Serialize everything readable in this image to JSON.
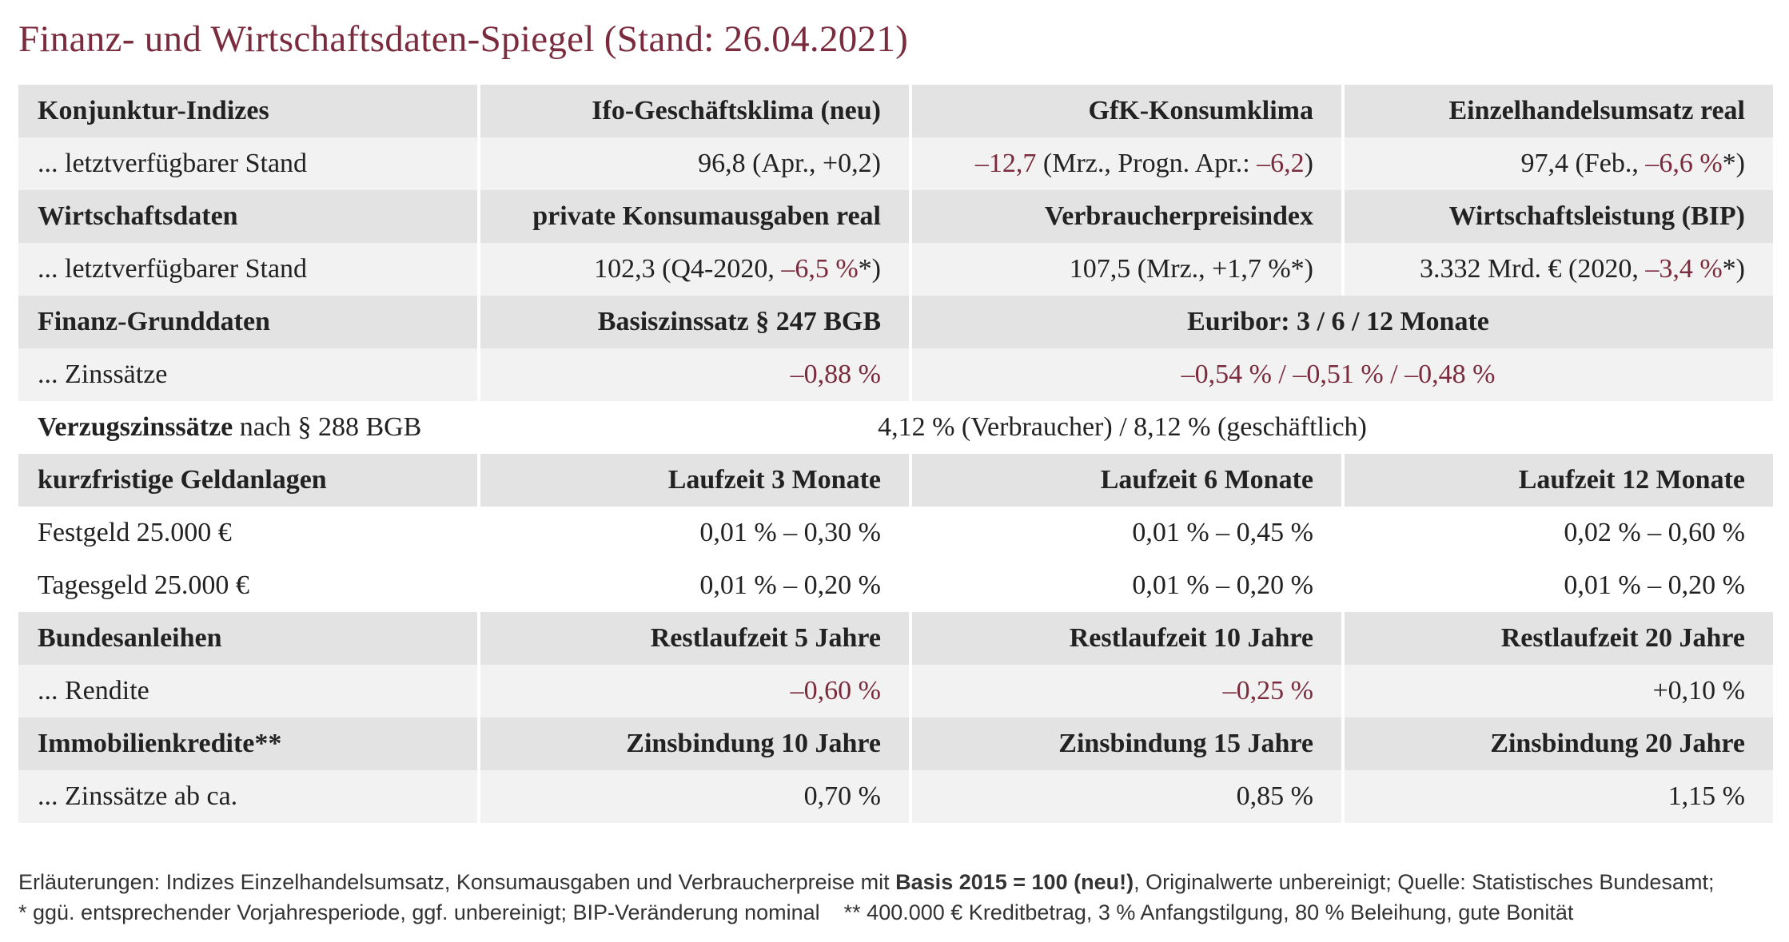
{
  "title": "Finanz- und Wirtschaftsdaten-Spiegel (Stand: 26.04.2021)",
  "table": {
    "rows": [
      [
        "Konjunktur-Indizes",
        "Ifo-Geschäftsklima (neu)",
        "GfK-Konsumklima",
        "Einzelhandelsumsatz real"
      ],
      [
        "... letztverfügbarer Stand",
        "96,8 (Apr., +0,2)",
        [
          "–12,7",
          " (Mrz., Progn. Apr.: ",
          "–6,2",
          ")"
        ],
        [
          "97,4 (Feb., ",
          "–6,6 %",
          "*)"
        ]
      ],
      [
        "Wirtschaftsdaten",
        "private Konsumausgaben real",
        "Verbraucherpreisindex",
        "Wirtschaftsleistung (BIP)"
      ],
      [
        "... letztverfügbarer Stand",
        [
          "102,3 (Q4-2020, ",
          "–6,5 %",
          "*)"
        ],
        "107,5 (Mrz., +1,7 %*)",
        [
          "3.332 Mrd. € (2020, ",
          "–3,4 %",
          "*)"
        ]
      ],
      [
        "Finanz-Grunddaten",
        "Basiszinssatz § 247 BGB",
        "Euribor: 3 / 6 / 12 Monate"
      ],
      [
        "... Zinssätze",
        "–0,88 %",
        "–0,54 % / –0,51 % / –0,48 %"
      ],
      [
        [
          "Verzugszinssätze",
          " nach § 288 BGB"
        ],
        "4,12 % (Verbraucher) / 8,12 % (geschäftlich)"
      ],
      [
        "kurzfristige Geldanlagen",
        "Laufzeit 3 Monate",
        "Laufzeit 6 Monate",
        "Laufzeit 12 Monate"
      ],
      [
        "Festgeld 25.000 €",
        "0,01 % – 0,30 %",
        "0,01 % – 0,45 %",
        "0,02 % – 0,60 %"
      ],
      [
        "Tagesgeld 25.000 €",
        "0,01 % – 0,20 %",
        "0,01 % – 0,20 %",
        "0,01 % – 0,20 %"
      ],
      [
        "Bundesanleihen",
        "Restlaufzeit 5 Jahre",
        "Restlaufzeit 10 Jahre",
        "Restlaufzeit 20 Jahre"
      ],
      [
        "... Rendite",
        "–0,60 %",
        "–0,25 %",
        "+0,10 %"
      ],
      [
        "Immobilienkredite**",
        "Zinsbindung 10 Jahre",
        "Zinsbindung 15 Jahre",
        "Zinsbindung 20 Jahre"
      ],
      [
        "... Zinssätze ab ca.",
        "0,70 %",
        "0,85 %",
        "1,15 %"
      ]
    ]
  },
  "footnote": [
    [
      "Erläuterungen: Indizes Einzelhandelsumsatz, Konsumausgaben und Verbraucherpreise mit ",
      "Basis 2015 = 100 (neu!)",
      ", Originalwerte unbereinigt; Quelle: Statistisches Bundesamt;"
    ],
    "* ggü. entsprechender Vorjahresperiode, ggf. unbereinigt; BIP-Veränderung nominal    ** 400.000 € Kreditbetrag, 3 % Anfangstilgung, 80 % Beleihung, gute Bonität"
  ]
}
